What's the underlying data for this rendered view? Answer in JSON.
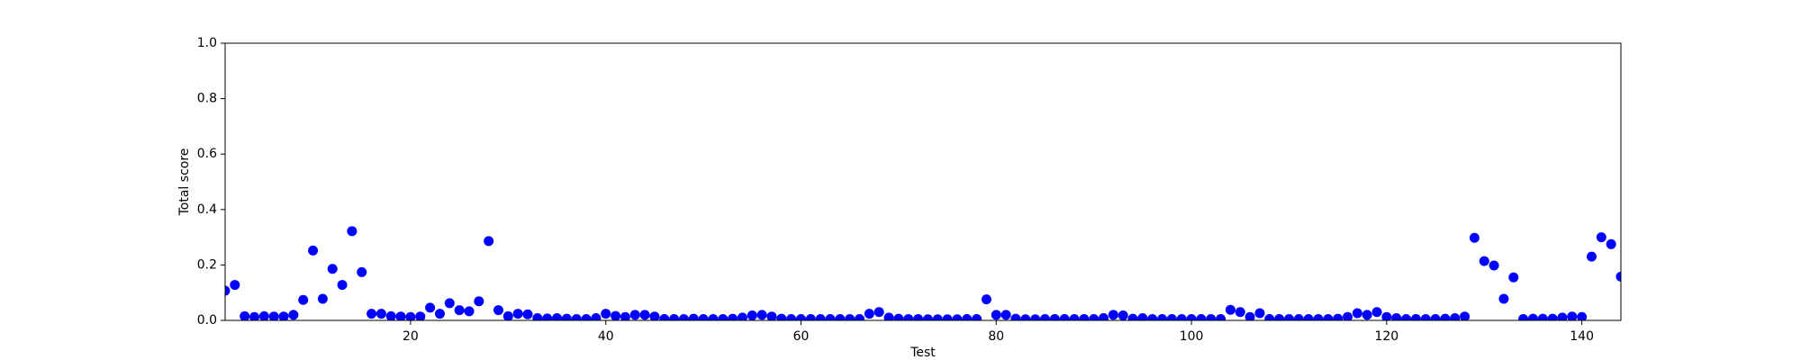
{
  "chart_data": {
    "type": "scatter",
    "x_label": "Test",
    "y_label": "Total score",
    "xlim": [
      1,
      144
    ],
    "ylim": [
      0,
      1
    ],
    "xticks": [
      20,
      40,
      60,
      80,
      100,
      120,
      140
    ],
    "yticks": [
      {
        "value": 0,
        "label": "0.0"
      },
      0.2,
      0.4,
      0.6,
      0.8,
      {
        "value": 1,
        "label": "1.0"
      }
    ],
    "color": "#0000ff",
    "x": [
      1,
      2,
      3,
      4,
      5,
      6,
      7,
      8,
      9,
      10,
      11,
      12,
      13,
      14,
      15,
      16,
      17,
      18,
      19,
      20,
      21,
      22,
      23,
      24,
      25,
      26,
      27,
      28,
      29,
      30,
      31,
      32,
      33,
      34,
      35,
      36,
      37,
      38,
      39,
      40,
      41,
      42,
      43,
      44,
      45,
      46,
      47,
      48,
      49,
      50,
      51,
      52,
      53,
      54,
      55,
      56,
      57,
      58,
      59,
      60,
      61,
      62,
      63,
      64,
      65,
      66,
      67,
      68,
      69,
      70,
      71,
      72,
      73,
      74,
      75,
      76,
      77,
      78,
      79,
      80,
      81,
      82,
      83,
      84,
      85,
      86,
      87,
      88,
      89,
      90,
      91,
      92,
      93,
      94,
      95,
      96,
      97,
      98,
      99,
      100,
      101,
      102,
      103,
      104,
      105,
      106,
      107,
      108,
      109,
      110,
      111,
      112,
      113,
      114,
      115,
      116,
      117,
      118,
      119,
      120,
      121,
      122,
      123,
      124,
      125,
      126,
      127,
      128,
      129,
      130,
      131,
      132,
      133,
      134,
      135,
      136,
      137,
      138,
      139,
      140,
      141,
      142,
      143,
      144
    ],
    "values": [
      0.107,
      0.128,
      0.015,
      0.012,
      0.015,
      0.014,
      0.014,
      0.02,
      0.074,
      0.252,
      0.078,
      0.186,
      0.128,
      0.322,
      0.174,
      0.024,
      0.024,
      0.015,
      0.014,
      0.012,
      0.014,
      0.046,
      0.024,
      0.062,
      0.037,
      0.033,
      0.069,
      0.286,
      0.037,
      0.015,
      0.024,
      0.022,
      0.008,
      0.007,
      0.008,
      0.006,
      0.005,
      0.005,
      0.008,
      0.024,
      0.016,
      0.012,
      0.02,
      0.02,
      0.014,
      0.005,
      0.005,
      0.005,
      0.006,
      0.005,
      0.005,
      0.005,
      0.006,
      0.01,
      0.018,
      0.02,
      0.014,
      0.006,
      0.005,
      0.005,
      0.005,
      0.005,
      0.005,
      0.005,
      0.005,
      0.005,
      0.024,
      0.03,
      0.01,
      0.006,
      0.005,
      0.005,
      0.004,
      0.004,
      0.004,
      0.004,
      0.005,
      0.005,
      0.076,
      0.02,
      0.02,
      0.006,
      0.004,
      0.004,
      0.005,
      0.005,
      0.005,
      0.005,
      0.005,
      0.005,
      0.008,
      0.02,
      0.018,
      0.006,
      0.008,
      0.005,
      0.005,
      0.005,
      0.005,
      0.005,
      0.005,
      0.005,
      0.005,
      0.038,
      0.03,
      0.012,
      0.026,
      0.005,
      0.005,
      0.005,
      0.005,
      0.005,
      0.005,
      0.005,
      0.006,
      0.012,
      0.026,
      0.02,
      0.03,
      0.012,
      0.008,
      0.005,
      0.005,
      0.005,
      0.005,
      0.006,
      0.008,
      0.014,
      0.298,
      0.214,
      0.198,
      0.078,
      0.155,
      0.005,
      0.006,
      0.006,
      0.006,
      0.01,
      0.014,
      0.012,
      0.23,
      0.3,
      0.275,
      0.158
    ]
  }
}
